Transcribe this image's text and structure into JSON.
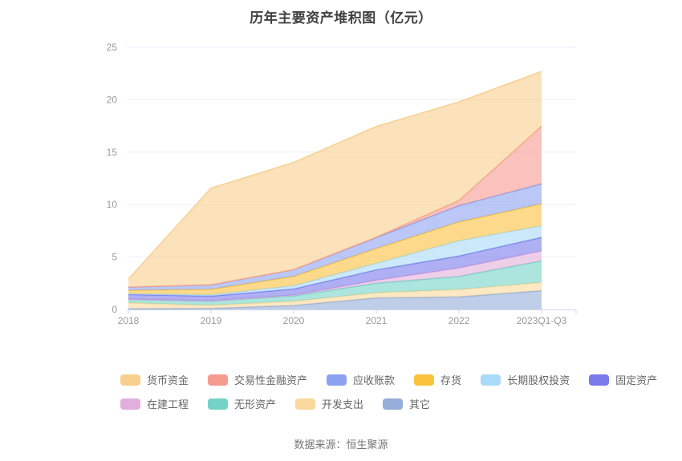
{
  "title": "历年主要资产堆积图（亿元）",
  "source": "数据来源：恒生聚源",
  "chart_data": {
    "type": "area",
    "stacked": true,
    "title": "历年主要资产堆积图（亿元）",
    "x": [
      "2018",
      "2019",
      "2020",
      "2021",
      "2022",
      "2023Q1-Q3"
    ],
    "series": [
      {
        "name": "货币资金",
        "color": "#F9CF8E",
        "values": [
          0.75,
          9.21,
          10.2,
          10.55,
          9.39,
          5.22
        ]
      },
      {
        "name": "交易性金融资产",
        "color": "#F59A8F",
        "values": [
          0.01,
          0.01,
          0.01,
          0.05,
          0.5,
          5.5
        ]
      },
      {
        "name": "应收账款",
        "color": "#8CA1F1",
        "values": [
          0.3,
          0.43,
          0.64,
          1.03,
          1.55,
          1.9
        ]
      },
      {
        "name": "存货",
        "color": "#FBC23D",
        "values": [
          0.32,
          0.52,
          0.89,
          1.42,
          1.8,
          2.1
        ]
      },
      {
        "name": "长期股权投资",
        "color": "#A9DBF8",
        "values": [
          0.08,
          0.13,
          0.31,
          0.62,
          1.45,
          1.1
        ]
      },
      {
        "name": "固定资产",
        "color": "#7A7AEB",
        "values": [
          0.45,
          0.45,
          0.59,
          1.0,
          1.15,
          1.3
        ]
      },
      {
        "name": "在建工程",
        "color": "#E2AFDC",
        "values": [
          0.03,
          0.04,
          0.08,
          0.28,
          0.8,
          0.95
        ]
      },
      {
        "name": "无形资产",
        "color": "#73D3C6",
        "values": [
          0.32,
          0.38,
          0.51,
          0.9,
          1.25,
          2.05
        ]
      },
      {
        "name": "开发支出",
        "color": "#FAD89B",
        "values": [
          0.55,
          0.3,
          0.4,
          0.5,
          0.7,
          0.78
        ]
      },
      {
        "name": "其它",
        "color": "#94ADD9",
        "values": [
          0.08,
          0.1,
          0.38,
          1.1,
          1.2,
          1.8
        ]
      }
    ],
    "stack_order_bottom_to_top": [
      "其它",
      "开发支出",
      "无形资产",
      "在建工程",
      "固定资产",
      "长期股权投资",
      "存货",
      "应收账款",
      "交易性金融资产",
      "货币资金"
    ],
    "legend_rows": [
      [
        0,
        1,
        2,
        3,
        4,
        5
      ],
      [
        6,
        7,
        8,
        9
      ]
    ],
    "ylim": [
      0,
      25
    ],
    "yticks": [
      0,
      5,
      10,
      15,
      20,
      25
    ],
    "grid": true,
    "legend_position": "bottom",
    "colors_meta": {
      "grid_line": "#ECEFF7",
      "axis_line": "#CCD6EA",
      "tick_label": "#999999",
      "area_fill_opacity": 0.6
    }
  }
}
